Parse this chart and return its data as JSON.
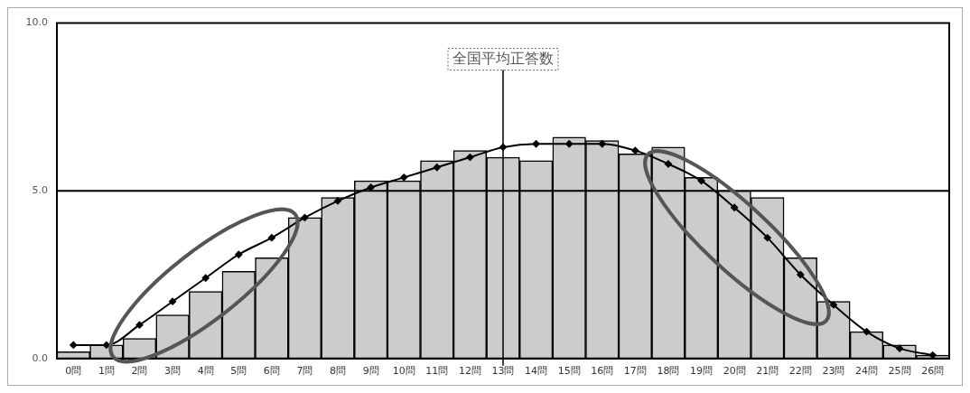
{
  "chart_data": {
    "type": "bar",
    "categories": [
      "0問",
      "1問",
      "2問",
      "3問",
      "4問",
      "5問",
      "6問",
      "7問",
      "8問",
      "9問",
      "10問",
      "11問",
      "12問",
      "13問",
      "14問",
      "15問",
      "16問",
      "17問",
      "18問",
      "19問",
      "20問",
      "21問",
      "22問",
      "23問",
      "24問",
      "25問",
      "26問"
    ],
    "series": [
      {
        "color": "#cccccc",
        "values": [
          0.2,
          0.4,
          0.6,
          1.3,
          2.0,
          2.6,
          3.0,
          4.2,
          4.8,
          5.3,
          5.3,
          5.9,
          6.2,
          6.0,
          5.9,
          6.6,
          6.5,
          6.1,
          6.3,
          5.4,
          5.0,
          4.8,
          3.0,
          1.7,
          0.8,
          0.4,
          0.1
        ]
      },
      {
        "type": "line",
        "color": "#000000",
        "values": [
          0.4,
          0.4,
          1.0,
          1.7,
          2.4,
          3.1,
          3.6,
          4.2,
          4.7,
          5.1,
          5.4,
          5.7,
          6.0,
          6.3,
          6.4,
          6.4,
          6.4,
          6.2,
          5.8,
          5.3,
          4.5,
          3.6,
          2.5,
          1.6,
          0.8,
          0.3,
          0.1
        ]
      }
    ],
    "ylim": [
      0,
      10
    ],
    "yticks": [
      {
        "value": 0,
        "label": "0.0"
      },
      {
        "value": 5,
        "label": "5.0"
      },
      {
        "value": 10,
        "label": "10.0"
      }
    ],
    "legend": false,
    "marker": "diamond",
    "line_style": "solid",
    "ref_lines": [
      {
        "axis": "x",
        "value": "13問",
        "label": "全国平均正答数",
        "color": "#000000"
      },
      {
        "axis": "y",
        "value": 5,
        "color": "#000000"
      }
    ]
  }
}
